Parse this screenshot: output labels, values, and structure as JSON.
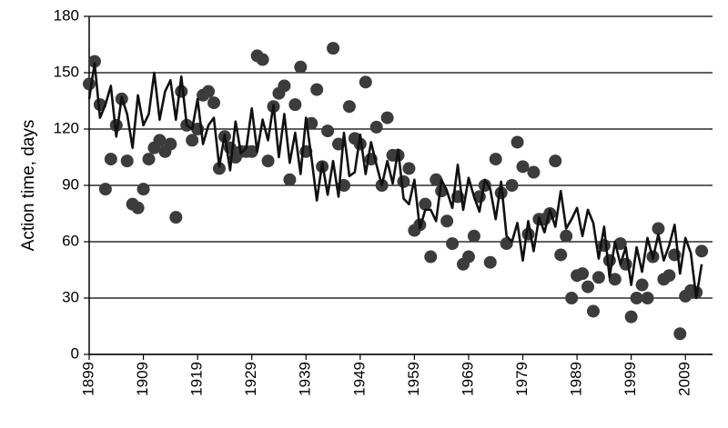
{
  "chart_data": {
    "type": "scatter",
    "y_label": "Action time, days",
    "x": [
      1899,
      1900,
      1901,
      1902,
      1903,
      1904,
      1905,
      1906,
      1907,
      1908,
      1909,
      1910,
      1911,
      1912,
      1913,
      1914,
      1915,
      1916,
      1917,
      1918,
      1919,
      1920,
      1921,
      1922,
      1923,
      1924,
      1925,
      1926,
      1927,
      1928,
      1929,
      1930,
      1931,
      1932,
      1933,
      1934,
      1935,
      1936,
      1937,
      1938,
      1939,
      1940,
      1941,
      1942,
      1943,
      1944,
      1945,
      1946,
      1947,
      1948,
      1949,
      1950,
      1951,
      1952,
      1953,
      1954,
      1955,
      1956,
      1957,
      1958,
      1959,
      1960,
      1961,
      1962,
      1963,
      1964,
      1965,
      1966,
      1967,
      1968,
      1969,
      1970,
      1971,
      1972,
      1973,
      1974,
      1975,
      1976,
      1977,
      1978,
      1979,
      1980,
      1981,
      1982,
      1983,
      1984,
      1985,
      1986,
      1987,
      1988,
      1989,
      1990,
      1991,
      1992,
      1993,
      1994,
      1995,
      1996,
      1997,
      1998,
      1999,
      2000,
      2001,
      2002,
      2003,
      2004,
      2005,
      2006,
      2007,
      2008,
      2009,
      2010,
      2011,
      2012
    ],
    "series": [
      {
        "type": "scatter",
        "color": "#3c3c3c",
        "values": [
          144,
          156,
          133,
          88,
          104,
          122,
          136,
          103,
          80,
          78,
          88,
          104,
          110,
          114,
          108,
          112,
          73,
          140,
          122,
          114,
          120,
          138,
          140,
          134,
          99,
          116,
          110,
          105,
          108,
          108,
          108,
          159,
          157,
          103,
          132,
          139,
          143,
          93,
          133,
          153,
          108,
          123,
          141,
          100,
          119,
          163,
          112,
          90,
          132,
          115,
          112,
          145,
          104,
          121,
          90,
          126,
          106,
          106,
          92,
          99,
          66,
          69,
          80,
          52,
          93,
          87,
          71,
          59,
          84,
          48,
          52,
          63,
          84,
          90,
          49,
          104,
          86,
          59,
          90,
          113,
          100,
          64,
          97,
          72,
          72,
          75,
          103,
          53,
          63,
          30,
          42,
          43,
          36,
          23,
          41,
          58,
          50,
          40,
          59,
          48,
          20,
          30,
          37,
          30,
          52,
          67,
          40,
          42,
          53,
          11,
          31,
          34,
          33,
          55
        ]
      },
      {
        "type": "line",
        "color": "#111111",
        "values": [
          136,
          155,
          126,
          133,
          143,
          116,
          137,
          128,
          110,
          138,
          122,
          128,
          150,
          125,
          140,
          146,
          125,
          148,
          122,
          120,
          136,
          112,
          122,
          126,
          100,
          117,
          98,
          124,
          107,
          110,
          131,
          108,
          125,
          114,
          133,
          105,
          128,
          102,
          118,
          96,
          126,
          105,
          82,
          102,
          85,
          103,
          84,
          118,
          95,
          97,
          117,
          96,
          113,
          101,
          90,
          103,
          91,
          109,
          83,
          80,
          93,
          67,
          77,
          77,
          71,
          93,
          87,
          78,
          101,
          77,
          94,
          84,
          76,
          93,
          88,
          72,
          92,
          63,
          60,
          70,
          50,
          71,
          55,
          73,
          65,
          77,
          68,
          87,
          67,
          72,
          78,
          63,
          77,
          70,
          51,
          68,
          41,
          60,
          48,
          57,
          37,
          57,
          44,
          62,
          51,
          64,
          50,
          58,
          69,
          43,
          62,
          54,
          30,
          48
        ]
      }
    ],
    "xlim": [
      1899,
      2014
    ],
    "xticks": [
      1899,
      1909,
      1919,
      1929,
      1939,
      1949,
      1959,
      1969,
      1979,
      1989,
      1999,
      2009
    ],
    "ylim": [
      0,
      180
    ],
    "yticks": [
      0,
      30,
      60,
      90,
      120,
      150,
      180
    ],
    "grid": true
  }
}
